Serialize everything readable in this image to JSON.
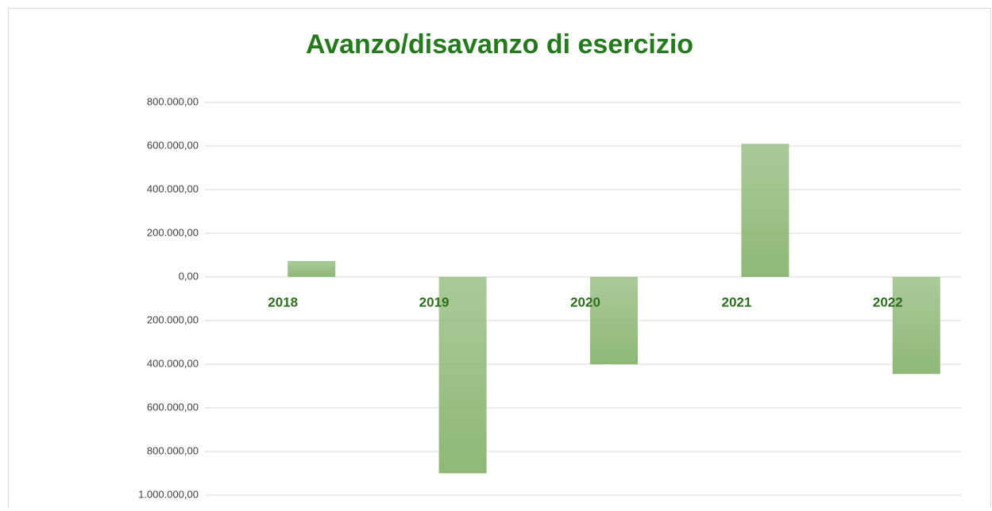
{
  "chart_data": {
    "type": "bar",
    "title": "Avanzo/disavanzo di esercizio",
    "categories": [
      "2018",
      "2019",
      "2020",
      "2021",
      "2022"
    ],
    "values": [
      73000,
      -900000,
      -400000,
      610000,
      -445000
    ],
    "color": "#8fb878",
    "title_color": "#267a1e",
    "category_color": "#2d6e1f",
    "negative_tick_color": "#e00000",
    "ylim": [
      -1000000,
      800000
    ],
    "yticks": [
      {
        "value": 800000,
        "label": "800.000,00"
      },
      {
        "value": 600000,
        "label": "600.000,00"
      },
      {
        "value": 400000,
        "label": "400.000,00"
      },
      {
        "value": 200000,
        "label": "200.000,00"
      },
      {
        "value": 0,
        "label": "0,00"
      },
      {
        "value": -200000,
        "label": "200.000,00"
      },
      {
        "value": -400000,
        "label": "400.000,00"
      },
      {
        "value": -600000,
        "label": "600.000,00"
      },
      {
        "value": -800000,
        "label": "800.000,00"
      },
      {
        "value": -1000000,
        "label": "1.000.000,00"
      }
    ],
    "grid": true
  }
}
